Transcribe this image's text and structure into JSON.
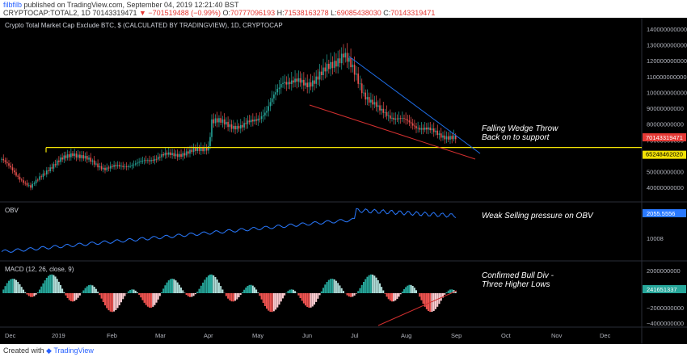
{
  "header": {
    "user": "filbfilb",
    "published": "published on TradingView.com, September 04, 2019 12:21:40 BST",
    "symbol": "CRYPTOCAP:TOTAL2, 1D",
    "last": "70143319471",
    "change": "−701519488 (−0.99%)",
    "o_label": "O:",
    "o": "70777096193",
    "h_label": "H:",
    "h": "71538163278",
    "l_label": "L:",
    "l": "69085438030",
    "c_label": "C:",
    "c": "70143319471"
  },
  "footer": {
    "created_with": "Created with",
    "brand": "TradingView"
  },
  "chart_data": [
    {
      "type": "candlestick",
      "title": "Crypto Total Market Cap Exclude BTC, $ (CALCULATED BY TRADINGVIEW), 1D, CRYPTOCAP",
      "y_ticks": [
        40000000000,
        50000000000,
        60000000000,
        70000000000,
        80000000000,
        90000000000,
        100000000000,
        110000000000,
        120000000000,
        130000000000,
        140000000000
      ],
      "y_tick_labels": [
        "40000000000",
        "50000000000",
        "60000000000",
        "70000000000",
        "80000000000",
        "90000000000",
        "100000000000",
        "110000000000",
        "120000000000",
        "130000000000",
        "140000000000"
      ],
      "ylim": [
        35000000000,
        143000000000
      ],
      "x_labels": [
        "Dec",
        "2019",
        "Feb",
        "Mar",
        "Apr",
        "May",
        "Jun",
        "Jul",
        "Aug",
        "Sep",
        "Oct",
        "Nov",
        "Dec"
      ],
      "close_points": [
        [
          "Dec",
          58000000000
        ],
        [
          "Dec",
          48000000000
        ],
        [
          "Dec",
          40000000000
        ],
        [
          "2019",
          52000000000
        ],
        [
          "2019",
          62000000000
        ],
        [
          "Feb",
          52000000000
        ],
        [
          "Feb",
          55000000000
        ],
        [
          "Mar",
          60000000000
        ],
        [
          "Mar",
          62000000000
        ],
        [
          "Apr",
          66000000000
        ],
        [
          "Apr",
          82000000000
        ],
        [
          "May",
          78000000000
        ],
        [
          "May",
          88000000000
        ],
        [
          "May",
          108000000000
        ],
        [
          "Jun",
          105000000000
        ],
        [
          "Jun",
          112000000000
        ],
        [
          "Jul",
          125000000000
        ],
        [
          "Jul",
          100000000000
        ],
        [
          "Jul",
          88000000000
        ],
        [
          "Aug",
          82000000000
        ],
        [
          "Aug",
          76000000000
        ],
        [
          "Sep",
          70143319471
        ]
      ],
      "price_label": "70143319471",
      "support_label": "65248462020",
      "support_level": 65248462020,
      "annotation": "Falling Wedge Throw\nBack on to support"
    },
    {
      "type": "line",
      "title": "OBV",
      "y_tick_labels": [
        "10008"
      ],
      "last_label": "2055.5556",
      "annotation": "Weak Selling pressure on OBV"
    },
    {
      "type": "bar",
      "title": "MACD (12, 26, close, 9)",
      "y_tick_labels": [
        "2000000000",
        "0",
        "−2000000000",
        "−4000000000"
      ],
      "last_label": "241651337",
      "annotation": "Confirmed Bull Div -\nThree Higher Lows"
    }
  ],
  "colors": {
    "up": "#26a69a",
    "down": "#ef5350",
    "support": "#f2e205",
    "trend_blue": "#1e6ee8",
    "trend_red": "#d32f2f",
    "obv": "#2979ff",
    "price_tag": "#e53935",
    "support_tag": "#f2e205"
  }
}
